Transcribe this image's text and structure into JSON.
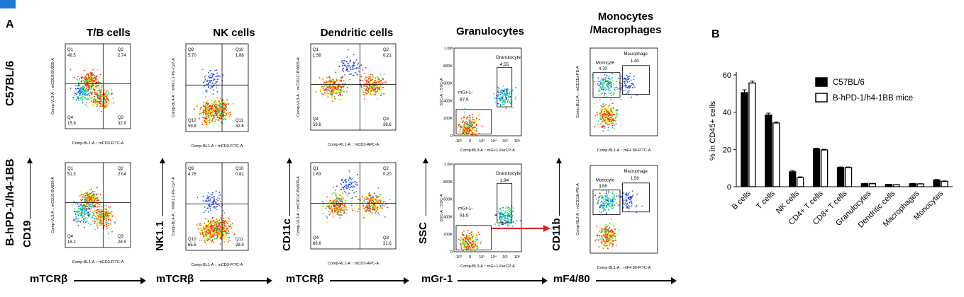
{
  "labels": {
    "panel_a": "A",
    "panel_b": "B",
    "row1": "C57BL/6",
    "row2": "B-hPD-1/h4-1BB"
  },
  "columns": [
    {
      "title": "T/B cells",
      "x_marker": "mTCRβ",
      "y_marker": "CD19"
    },
    {
      "title": "NK cells",
      "x_marker": "mTCRβ",
      "y_marker": "NK1.1"
    },
    {
      "title": "Dendritic cells",
      "x_marker": "mTCRβ",
      "y_marker": "CD11c"
    },
    {
      "title": "Granulocytes",
      "x_marker": "mGr-1",
      "y_marker": "SSC"
    },
    {
      "title": "Monocytes\n/Macrophages",
      "x_marker": "mF4/80",
      "y_marker": "CD11b"
    }
  ],
  "chart_data": [
    {
      "type": "scatter",
      "title": "T/B cells",
      "row": "C57BL/6",
      "xlabel": "Comp-BL1-A :: mCD3-FITC-A",
      "ylabel": "Comp-VL3-A :: mCD19-BV605-A",
      "quadrants": [
        {
          "name": "Q1",
          "value": "48.5"
        },
        {
          "name": "Q2",
          "value": "2.74"
        },
        {
          "name": "Q3",
          "value": "32.9"
        },
        {
          "name": "Q4",
          "value": "15.9"
        }
      ],
      "pops": [
        [
          0.38,
          0.45,
          "hi"
        ],
        [
          0.55,
          0.64,
          "hi"
        ],
        [
          0.27,
          0.56,
          "mid"
        ]
      ]
    },
    {
      "type": "scatter",
      "title": "NK cells",
      "row": "C57BL/6",
      "xlabel": "Comp-BL1-A :: mCD3-FITC-A",
      "ylabel": "Comp-BL4-A :: mNK1.1-PE-Cy7-A",
      "quadrants": [
        {
          "name": "Q9",
          "value": "5.70"
        },
        {
          "name": "Q10",
          "value": "1.88"
        },
        {
          "name": "Q11",
          "value": "32.6"
        },
        {
          "name": "Q12",
          "value": "59.8"
        }
      ],
      "pops": [
        [
          0.36,
          0.78,
          "hi"
        ],
        [
          0.56,
          0.76,
          "hi"
        ],
        [
          0.42,
          0.42,
          "low"
        ]
      ]
    },
    {
      "type": "scatter",
      "title": "Dendritic cells",
      "row": "C57BL/6",
      "xlabel": "Comp-RL1-A :: mCD3-APC-A",
      "ylabel": "Comp-VL3-A :: mCD11C-BV605-A",
      "quadrants": [
        {
          "name": "Q1",
          "value": "1.58"
        },
        {
          "name": "Q2",
          "value": "0.21"
        },
        {
          "name": "Q3",
          "value": "38.6"
        },
        {
          "name": "Q4",
          "value": "59.6"
        }
      ],
      "pops": [
        [
          0.26,
          0.5,
          "hi"
        ],
        [
          0.72,
          0.48,
          "hi"
        ],
        [
          0.45,
          0.25,
          "low"
        ]
      ]
    },
    {
      "type": "scatter",
      "title": "Granulocytes",
      "row": "C57BL/6",
      "xlabel": "Comp-BL3-A :: mGr-1-PerCP-A",
      "ylabel": "SSC-A :: SSC-A",
      "gates": [
        {
          "name": "Granulocyte",
          "value": "4.55"
        },
        {
          "name": "mGr-1-",
          "value": "87.6"
        }
      ],
      "y_ticks": [
        "0",
        "200K",
        "400K",
        "600K",
        "800K",
        "1.0M"
      ],
      "x_ticks": [
        "-10³",
        "0",
        "10³",
        "10⁴",
        "10⁵",
        "10⁶"
      ],
      "pops": [
        [
          0.22,
          0.9,
          "hi"
        ],
        [
          0.75,
          0.55,
          "mid"
        ]
      ]
    },
    {
      "type": "scatter",
      "title": "Monocytes/Macrophages",
      "row": "C57BL/6",
      "xlabel": "Comp-BL1-A :: mF4 80-FITC-A",
      "ylabel": "Comp-BL2-A :: mCD11b-PE-A",
      "gates": [
        {
          "name": "Monocyte",
          "value": "4.70"
        },
        {
          "name": "Macrophage",
          "value": "1.40"
        }
      ],
      "pops": [
        [
          0.25,
          0.78,
          "hi"
        ],
        [
          0.25,
          0.42,
          "mid"
        ],
        [
          0.55,
          0.4,
          "low"
        ]
      ]
    },
    {
      "type": "scatter",
      "title": "T/B cells",
      "row": "B-hPD-1/h4-1BB",
      "xlabel": "Comp-BL1-A :: mCD3-FITC-A",
      "ylabel": "Comp-VL3-A :: mCD19-BV605-A",
      "quadrants": [
        {
          "name": "Q1",
          "value": "51.3"
        },
        {
          "name": "Q2",
          "value": "2.04"
        },
        {
          "name": "Q3",
          "value": "28.5"
        },
        {
          "name": "Q4",
          "value": "18.2"
        }
      ],
      "pops": [
        [
          0.38,
          0.45,
          "hi"
        ],
        [
          0.58,
          0.64,
          "hi"
        ],
        [
          0.27,
          0.58,
          "mid"
        ]
      ]
    },
    {
      "type": "scatter",
      "title": "NK cells",
      "row": "B-hPD-1/h4-1BB",
      "xlabel": "Comp-BL1-A :: mCD3-FITC-A",
      "ylabel": "Comp-BL4-A :: mNK1.1-PE-Cy7-A",
      "quadrants": [
        {
          "name": "Q9",
          "value": "4.78"
        },
        {
          "name": "Q10",
          "value": "0.81"
        },
        {
          "name": "Q11",
          "value": "28.9"
        },
        {
          "name": "Q12",
          "value": "65.5"
        }
      ],
      "pops": [
        [
          0.38,
          0.78,
          "hi"
        ],
        [
          0.56,
          0.76,
          "hi"
        ],
        [
          0.42,
          0.45,
          "low"
        ]
      ]
    },
    {
      "type": "scatter",
      "title": "Dendritic cells",
      "row": "B-hPD-1/h4-1BB",
      "xlabel": "Comp-RL1-A :: mCD3-APC-A",
      "ylabel": "Comp-VL3-A :: mCD11C-BV605-A",
      "quadrants": [
        {
          "name": "Q1",
          "value": "1.63"
        },
        {
          "name": "Q2",
          "value": "0.20"
        },
        {
          "name": "Q3",
          "value": "31.6"
        },
        {
          "name": "Q4",
          "value": "66.6"
        }
      ],
      "pops": [
        [
          0.3,
          0.5,
          "hi"
        ],
        [
          0.72,
          0.48,
          "hi"
        ],
        [
          0.45,
          0.25,
          "low"
        ]
      ]
    },
    {
      "type": "scatter",
      "title": "Granulocytes",
      "row": "B-hPD-1/h4-1BB",
      "xlabel": "Comp-BL3-A :: mGr-1-PerCP-A",
      "ylabel": "SSC-A :: SSC-A",
      "gates": [
        {
          "name": "Granulocyte",
          "value": "1.94"
        },
        {
          "name": "mGr-1-",
          "value": "91.5"
        }
      ],
      "y_ticks": [
        "0",
        "200K",
        "400K",
        "600K",
        "800K",
        "1.0M"
      ],
      "x_ticks": [
        "-10³",
        "0",
        "10³",
        "10⁴",
        "10⁵",
        "10⁶"
      ],
      "pops": [
        [
          0.22,
          0.9,
          "hi"
        ],
        [
          0.75,
          0.6,
          "mid"
        ]
      ]
    },
    {
      "type": "scatter",
      "title": "Monocytes/Macrophages",
      "row": "B-hPD-1/h4-1BB",
      "xlabel": "Comp-BL1-A :: mF4 80-FITC-A",
      "ylabel": "Comp-BL2-A :: mCD11b-PE-A",
      "gates": [
        {
          "name": "Monocyte",
          "value": "3.86"
        },
        {
          "name": "Macrophage",
          "value": "1.56"
        }
      ],
      "pops": [
        [
          0.25,
          0.8,
          "hi"
        ],
        [
          0.25,
          0.42,
          "mid"
        ],
        [
          0.55,
          0.4,
          "low"
        ]
      ]
    },
    {
      "type": "bar",
      "title": "",
      "ylabel": "% in CD45+ cells",
      "xlabel": "",
      "ylim": [
        0,
        60
      ],
      "yticks": [
        0,
        20,
        40,
        60
      ],
      "categories": [
        "B cells",
        "T cells",
        "NK cells",
        "CD4+ T cells",
        "CD8+ T cells",
        "Granulocytes",
        "Dendritic cells",
        "Macrophages",
        "Monocytes"
      ],
      "series": [
        {
          "name": "C57BL/6",
          "color": "#000000",
          "values": [
            50.5,
            38.5,
            8.0,
            20.3,
            10.3,
            1.6,
            1.2,
            1.6,
            3.6
          ]
        },
        {
          "name": "B-hPD-1/h4-1BB mice",
          "color": "#ffffff",
          "values": [
            55.7,
            34.2,
            4.8,
            19.7,
            10.3,
            1.6,
            1.0,
            1.5,
            2.9
          ]
        }
      ],
      "errors": [
        [
          1.5,
          1.0,
          0.6,
          0.4,
          0.3,
          0.2,
          0.1,
          0.2,
          0.3
        ],
        [
          1.0,
          0.6,
          0.5,
          0.4,
          0.3,
          0.2,
          0.1,
          0.1,
          0.2
        ]
      ],
      "legend": "top-right"
    }
  ]
}
